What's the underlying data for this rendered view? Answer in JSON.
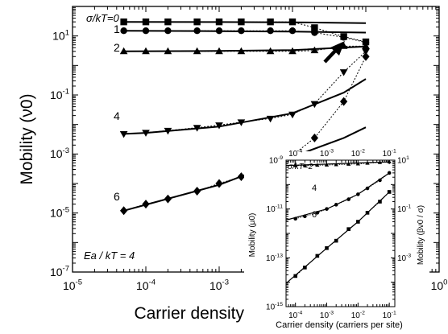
{
  "chart_data": [
    {
      "type": "line",
      "xlabel": "Carrier density (carriers per site)",
      "ylabel": "Mobility (ν0)",
      "xscale": "log",
      "yscale": "log",
      "xlim": [
        1e-05,
        1
      ],
      "ylim": [
        1e-07,
        100
      ],
      "x_ticks": [
        {
          "v": 1e-05,
          "base": "10",
          "exp": "-5"
        },
        {
          "v": 0.0001,
          "base": "10",
          "exp": "-4"
        },
        {
          "v": 0.001,
          "base": "10",
          "exp": "-3"
        },
        {
          "v": 0.01,
          "base": "10",
          "exp": "-2"
        },
        {
          "v": 0.1,
          "base": "10",
          "exp": "-1"
        },
        {
          "v": 1,
          "base": "10",
          "exp": "0"
        }
      ],
      "y_ticks": [
        {
          "v": 1e-07,
          "base": "10",
          "exp": "-7"
        },
        {
          "v": 1e-05,
          "base": "10",
          "exp": "-5"
        },
        {
          "v": 0.001,
          "base": "10",
          "exp": "-3"
        },
        {
          "v": 0.1,
          "base": "10",
          "exp": "-1"
        },
        {
          "v": 10,
          "base": "10",
          "exp": "1"
        }
      ],
      "annotation": "Ea / kT = 4",
      "series_labels": [
        "σ/kT=0",
        "1",
        "2",
        "4",
        "6"
      ],
      "series": [
        {
          "label": "σ/kT=0",
          "marker": "square",
          "x": [
            5e-05,
            0.0001,
            0.0002,
            0.0005,
            0.001,
            0.002,
            0.005,
            0.01,
            0.02,
            0.05,
            0.1
          ],
          "points": [
            30,
            30,
            30,
            30,
            30,
            30,
            30,
            30,
            19,
            9.5,
            6.3
          ],
          "theory_x": [
            5e-05,
            0.001,
            0.01,
            0.1
          ],
          "theory_y": [
            30,
            29.5,
            29,
            27
          ]
        },
        {
          "label": "1",
          "marker": "circle",
          "x": [
            5e-05,
            0.0001,
            0.0002,
            0.0005,
            0.001,
            0.002,
            0.005,
            0.01,
            0.02,
            0.05,
            0.1
          ],
          "points": [
            15,
            15,
            15,
            15,
            15,
            15,
            15,
            15,
            13,
            9,
            6
          ],
          "theory_x": [
            5e-05,
            0.001,
            0.01,
            0.1
          ],
          "theory_y": [
            15,
            14.5,
            14,
            13
          ]
        },
        {
          "label": "2",
          "marker": "triangle-up",
          "x": [
            5e-05,
            0.0001,
            0.0002,
            0.0005,
            0.001,
            0.002,
            0.005,
            0.01,
            0.02,
            0.05,
            0.1
          ],
          "points": [
            3,
            3,
            3,
            3,
            3,
            3,
            3,
            3,
            3.2,
            4.5,
            4.5
          ],
          "theory_x": [
            5e-05,
            0.001,
            0.01,
            0.1
          ],
          "theory_y": [
            3,
            3.1,
            3.3,
            4.4
          ]
        },
        {
          "label": "4",
          "marker": "triangle-down",
          "x": [
            5e-05,
            0.0001,
            0.0002,
            0.0005,
            0.001,
            0.002,
            0.005,
            0.01,
            0.02,
            0.05,
            0.1
          ],
          "points": [
            0.0048,
            0.0053,
            0.0062,
            0.0078,
            0.0095,
            0.012,
            0.016,
            0.022,
            0.05,
            0.6,
            3
          ],
          "theory_x": [
            5e-05,
            0.0001,
            0.001,
            0.01,
            0.05,
            0.1
          ],
          "theory_y": [
            0.0048,
            0.0052,
            0.0085,
            0.024,
            0.12,
            0.35
          ]
        },
        {
          "label": "6",
          "marker": "diamond",
          "x": [
            5e-05,
            0.0001,
            0.0002,
            0.0005,
            0.001,
            0.002,
            0.005,
            0.01,
            0.02,
            0.05,
            0.1
          ],
          "points": [
            1.2e-05,
            2e-05,
            3e-05,
            5.5e-05,
            0.0001,
            0.00017,
            0.0004,
            0.0009,
            0.0035,
            0.06,
            2
          ],
          "theory_x": [
            5e-05,
            0.0001,
            0.001,
            0.01,
            0.05,
            0.1
          ],
          "theory_y": [
            1.2e-05,
            1.9e-05,
            9e-05,
            0.0008,
            0.0035,
            0.008
          ]
        }
      ]
    },
    {
      "type": "line",
      "xlabel": "Carrier density (carriers per site)",
      "ylabel": "Mobility (μ0)",
      "y2label": "Mobility (βν0 / σ)",
      "xscale": "log",
      "yscale": "log",
      "xlim": [
        5e-05,
        0.15
      ],
      "ylim": [
        1e-15,
        1e-09
      ],
      "x_ticks": [
        {
          "v": 0.0001,
          "base": "10",
          "exp": "-4"
        },
        {
          "v": 0.001,
          "base": "10",
          "exp": "-3"
        },
        {
          "v": 0.01,
          "base": "10",
          "exp": "-2"
        },
        {
          "v": 0.1,
          "base": "10",
          "exp": "-1"
        }
      ],
      "y_ticks": [
        {
          "v": 1e-15,
          "base": "10",
          "exp": "-15"
        },
        {
          "v": 1e-13,
          "base": "10",
          "exp": "-13"
        },
        {
          "v": 1e-11,
          "base": "10",
          "exp": "-11"
        },
        {
          "v": 1e-09,
          "base": "10",
          "exp": "-9"
        }
      ],
      "y2_ticks": [
        {
          "base": "10",
          "exp": "1"
        },
        {
          "base": "10",
          "exp": "-1"
        },
        {
          "base": "10",
          "exp": "-3"
        }
      ],
      "series_labels": [
        "σ/kT=2",
        "4",
        "6"
      ],
      "series": [
        {
          "label": "σ/kT=2",
          "marker": "triangle-up",
          "x": [
            0.0001,
            0.0002,
            0.0005,
            0.001,
            0.002,
            0.005,
            0.01,
            0.02,
            0.05,
            0.1
          ],
          "points": [
            6e-10,
            6e-10,
            6.2e-10,
            6.3e-10,
            6.5e-10,
            6.8e-10,
            7e-10,
            7.5e-10,
            8e-10,
            8.5e-10
          ],
          "theory_x": [
            5e-05,
            0.1
          ],
          "theory_y": [
            6e-10,
            8.5e-10
          ]
        },
        {
          "label": "4",
          "marker": "circle",
          "x": [
            0.0001,
            0.0002,
            0.0005,
            0.001,
            0.002,
            0.005,
            0.01,
            0.02,
            0.05,
            0.1
          ],
          "points": [
            4e-12,
            5e-12,
            7e-12,
            1e-11,
            1.5e-11,
            2.5e-11,
            4e-11,
            7e-11,
            1.5e-10,
            3e-10
          ],
          "theory_x": [
            5e-05,
            0.001,
            0.01,
            0.1
          ],
          "theory_y": [
            3.5e-12,
            1e-11,
            4e-11,
            3e-10
          ]
        },
        {
          "label": "6",
          "marker": "square",
          "x": [
            0.0001,
            0.0002,
            0.0005,
            0.001,
            0.002,
            0.005,
            0.01,
            0.02,
            0.05,
            0.1
          ],
          "points": [
            1.8e-14,
            4e-14,
            1.2e-13,
            2.5e-13,
            5e-13,
            1.5e-12,
            3e-12,
            7e-12,
            2e-11,
            5e-11
          ],
          "theory_x": [
            5e-05,
            0.001,
            0.01,
            0.1
          ],
          "theory_y": [
            9e-15,
            2.5e-13,
            3e-12,
            5e-11
          ]
        }
      ]
    }
  ]
}
